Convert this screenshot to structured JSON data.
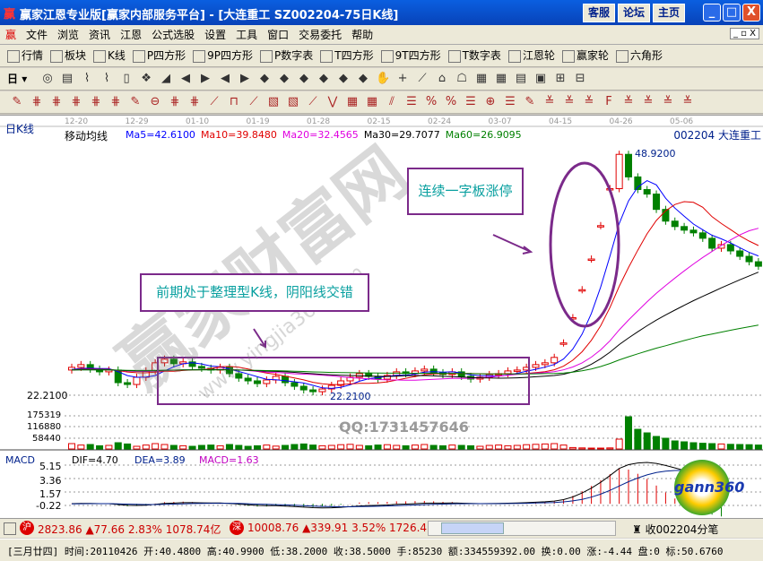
{
  "window": {
    "title": "赢家江恩专业版[赢家内部服务平台] - [大连重工   SZ002204-75日K线]",
    "buttons": [
      "客服",
      "论坛",
      "主页"
    ],
    "controls": [
      "_",
      "□",
      "X"
    ]
  },
  "menu": {
    "items": [
      "文件",
      "浏览",
      "资讯",
      "江恩",
      "公式选股",
      "设置",
      "工具",
      "窗口",
      "交易委托",
      "帮助"
    ]
  },
  "toolbar1": {
    "items": [
      {
        "icon": "grid",
        "label": "行情"
      },
      {
        "icon": "blocks",
        "label": "板块"
      },
      {
        "icon": "candles",
        "label": "K线"
      },
      {
        "icon": "PS",
        "label": "P四方形"
      },
      {
        "icon": "P9",
        "label": "9P四方形"
      },
      {
        "icon": "PN",
        "label": "P数字表"
      },
      {
        "icon": "TS",
        "label": "T四方形"
      },
      {
        "icon": "T9",
        "label": "9T四方形"
      },
      {
        "icon": "TN",
        "label": "T数字表"
      },
      {
        "icon": "wheel",
        "label": "江恩轮"
      },
      {
        "icon": "wheel",
        "label": "赢家轮"
      },
      {
        "icon": "hexagon",
        "label": "六角形"
      }
    ]
  },
  "toolbar2": {
    "period": "日"
  },
  "chart": {
    "label": "日K线",
    "indicator": "移动均线",
    "ma": [
      {
        "label": "Ma5=42.6100",
        "color": "#0000ff"
      },
      {
        "label": "Ma10=39.8480",
        "color": "#e00000"
      },
      {
        "label": "Ma20=32.4565",
        "color": "#e000e0"
      },
      {
        "label": "Ma30=29.7077",
        "color": "#000000"
      },
      {
        "label": "Ma60=26.9095",
        "color": "#008000"
      }
    ],
    "stock": "002204  大连重工",
    "dates": [
      "12-20",
      "12-29",
      "01-10",
      "01-19",
      "01-28",
      "02-15",
      "02-24",
      "03-07",
      "04-15",
      "04-26",
      "05-06"
    ],
    "low_label": "22.2100",
    "high_label": "48.9200",
    "price_axis": "22.2100",
    "closes": [
      25.3,
      25.6,
      25.1,
      24.8,
      25.0,
      23.6,
      23.4,
      24.2,
      24.9,
      25.8,
      26.2,
      25.7,
      25.9,
      25.4,
      25.2,
      25.0,
      25.3,
      24.6,
      24.1,
      23.8,
      23.5,
      23.9,
      24.3,
      23.6,
      23.2,
      22.8,
      22.6,
      22.9,
      23.3,
      23.8,
      24.2,
      24.6,
      24.3,
      24.0,
      24.4,
      24.8,
      24.6,
      24.9,
      25.1,
      24.7,
      24.5,
      24.8,
      24.3,
      24.0,
      24.2,
      24.5,
      24.6,
      24.9,
      25.0,
      25.3,
      25.6,
      25.8,
      26.4,
      28.0,
      30.8,
      33.9,
      37.3,
      41.0,
      45.1,
      48.9,
      46.4,
      45.0,
      44.5,
      42.8,
      41.5,
      40.9,
      40.5,
      40.2,
      39.6,
      38.5,
      38.9,
      38.2,
      37.6,
      37.0,
      36.5
    ],
    "volumes": [
      30,
      22,
      25,
      18,
      20,
      35,
      28,
      15,
      22,
      30,
      25,
      20,
      18,
      15,
      20,
      22,
      18,
      25,
      20,
      15,
      18,
      22,
      16,
      20,
      25,
      28,
      22,
      18,
      20,
      24,
      26,
      20,
      18,
      22,
      24,
      20,
      18,
      22,
      25,
      20,
      18,
      22,
      20,
      18,
      15,
      20,
      22,
      18,
      20,
      24,
      26,
      28,
      30,
      22,
      8,
      6,
      5,
      5,
      6,
      55,
      180,
      110,
      90,
      70,
      60,
      45,
      40,
      35,
      32,
      30,
      28,
      26,
      25,
      24,
      22
    ],
    "vol_ticks": [
      "175319",
      "116880",
      "58440"
    ],
    "macd": {
      "dif": "DIF=4.70",
      "dea": "DEA=3.89",
      "macd": "MACD=1.63",
      "ticks": [
        "5.15",
        "3.36",
        "1.57",
        "-0.22"
      ]
    }
  },
  "annotations": {
    "limit_up": "连续一字板涨停",
    "consolidation": "前期处于整理型K线，阴阳线交错",
    "qq": "QQ:1731457646",
    "watermark": "赢家财富网",
    "watermark_url": "www.yingjia360.com",
    "logo": "gann360"
  },
  "status": {
    "sh": {
      "tag": "沪",
      "text": "2823.86 ▲77.66 2.83% 1078.74亿"
    },
    "sz": {
      "tag": "深",
      "text": "10008.76 ▲339.91 3.52% 1726.44"
    },
    "tick": "收002204分笔"
  },
  "bottom": {
    "text": "[三月廿四] 时间:20110426 开:40.4800 高:40.9900 低:38.2000 收:38.5000 手:85230 额:334559392.00 换:0.00 涨:-4.44 盘:0 标:50.6760"
  },
  "colors": {
    "up": "#e00000",
    "down": "#008000",
    "title": "#0842b8"
  }
}
